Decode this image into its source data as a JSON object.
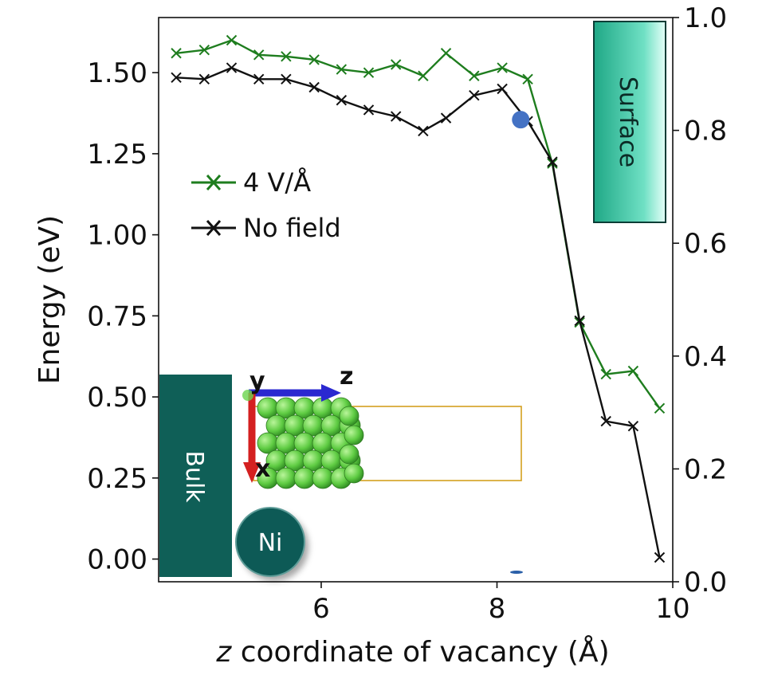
{
  "chart_data": {
    "type": "line",
    "xlabel_italic": "z",
    "xlabel_rest": " coordinate of vacancy (Å)",
    "ylabel": "Energy (eV)",
    "xlim": [
      4.15,
      10.0
    ],
    "ylim": [
      -0.07,
      1.67
    ],
    "xticks": [
      6,
      8,
      10
    ],
    "yticks": [
      0.0,
      0.25,
      0.5,
      0.75,
      1.0,
      1.25,
      1.5
    ],
    "yticks_right": [
      0.0,
      0.2,
      0.4,
      0.6,
      0.8,
      1.0
    ],
    "grid": false,
    "legend_position": "upper-left",
    "series": [
      {
        "name": "4 V/Å",
        "color": "#1e7d1e",
        "marker": "x",
        "x": [
          4.35,
          4.67,
          4.98,
          5.29,
          5.6,
          5.92,
          6.23,
          6.54,
          6.85,
          7.16,
          7.42,
          7.74,
          8.06,
          8.35,
          8.63,
          8.94,
          9.24,
          9.55,
          9.85
        ],
        "y": [
          1.56,
          1.57,
          1.6,
          1.555,
          1.55,
          1.54,
          1.51,
          1.5,
          1.525,
          1.49,
          1.56,
          1.49,
          1.515,
          1.48,
          1.22,
          0.73,
          0.57,
          0.58,
          0.465
        ]
      },
      {
        "name": "No field",
        "color": "#111111",
        "marker": "x",
        "x": [
          4.35,
          4.67,
          4.98,
          5.29,
          5.6,
          5.92,
          6.23,
          6.54,
          6.85,
          7.16,
          7.42,
          7.74,
          8.06,
          8.35,
          8.63,
          8.94,
          9.24,
          9.55,
          9.85
        ],
        "y": [
          1.485,
          1.48,
          1.515,
          1.48,
          1.48,
          1.455,
          1.415,
          1.385,
          1.365,
          1.32,
          1.36,
          1.43,
          1.45,
          1.35,
          1.225,
          0.735,
          0.425,
          0.41,
          0.005
        ]
      }
    ],
    "highlight_point": {
      "x": 8.27,
      "y": 1.355,
      "color": "#4472c4"
    },
    "labels": {
      "surface": "Surface",
      "bulk": "Bulk",
      "element": "Ni",
      "axis_z": "z",
      "axis_y": "y",
      "axis_x": "x"
    },
    "colors": {
      "surface_box": "#2ec2a0",
      "bulk_box": "#0f5f57",
      "ni_circle": "#0e5a56",
      "atom": "#6ad44e",
      "arrow_z": "#2a28d0",
      "arrow_x": "#d42020",
      "cell": "#d4a020"
    }
  }
}
